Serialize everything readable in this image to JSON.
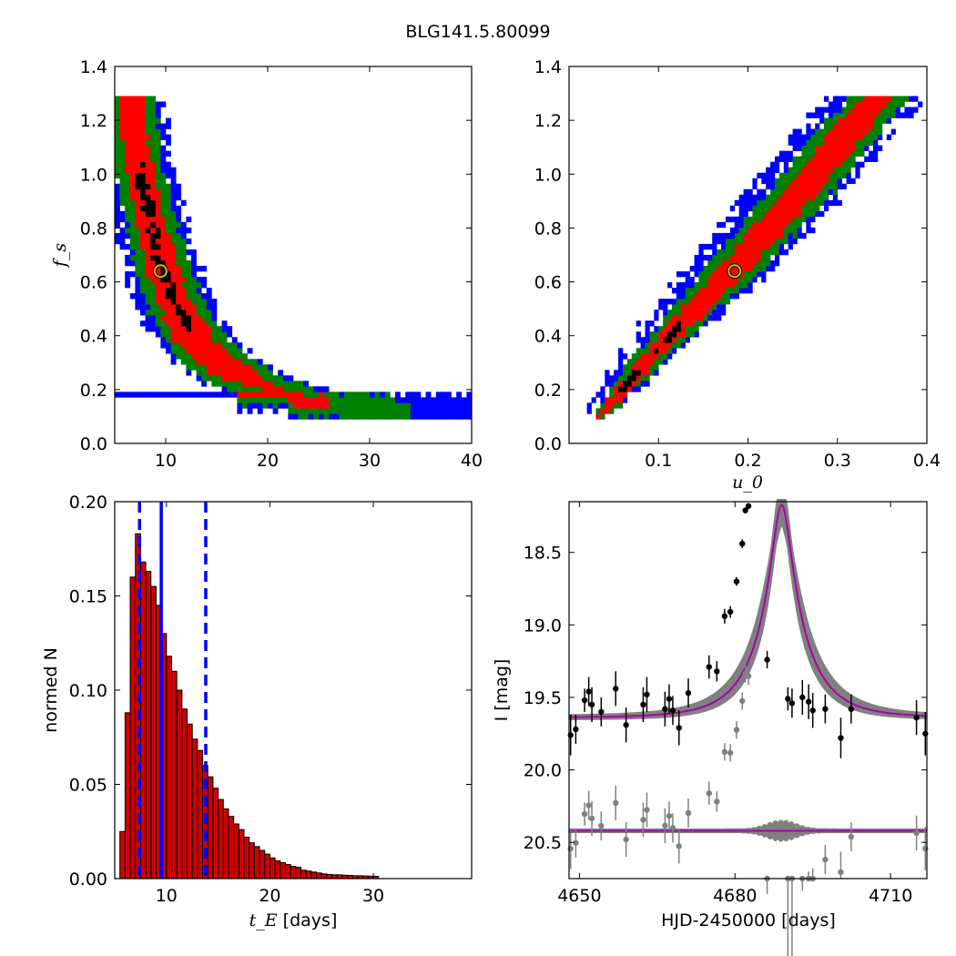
{
  "figure": {
    "title": "BLG141.5.80099"
  },
  "colors": {
    "sigma1": "#ff0000",
    "sigma2": "#008000",
    "sigma3": "#0000ff",
    "best_high": "#000000",
    "best_fit_marker": "#c8c800",
    "hist_bar": "#cc0000",
    "hist_line": "#0000ff",
    "model": "#aa00aa",
    "model_band": "#808080",
    "residuals": "#808080",
    "data": "#000000"
  },
  "chart_data": [
    {
      "type": "heatmap",
      "id": "tE_fs",
      "xlabel": "",
      "ylabel": "f_s",
      "xlim": [
        5,
        40
      ],
      "ylim": [
        0.0,
        1.4
      ],
      "xticks": [
        "10",
        "20",
        "30",
        "40"
      ],
      "yticks": [
        "0.0",
        "0.2",
        "0.4",
        "0.6",
        "0.8",
        "1.0",
        "1.2",
        "1.4"
      ],
      "best_fit": {
        "tE": 9.5,
        "fs": 0.64
      },
      "confidence_ridge": [
        {
          "tE": 6.5,
          "fs": 1.28,
          "w1": 1.2,
          "w2": 2.3,
          "w3": 3.2
        },
        {
          "tE": 7.5,
          "fs": 1.0,
          "w1": 1.3,
          "w2": 2.4,
          "w3": 3.4
        },
        {
          "tE": 9.0,
          "fs": 0.75,
          "w1": 1.5,
          "w2": 2.6,
          "w3": 3.6
        },
        {
          "tE": 10.5,
          "fs": 0.55,
          "w1": 1.6,
          "w2": 2.9,
          "w3": 3.9
        },
        {
          "tE": 13.0,
          "fs": 0.38,
          "w1": 2.0,
          "w2": 3.2,
          "w3": 4.2
        },
        {
          "tE": 17.0,
          "fs": 0.25,
          "w1": 2.5,
          "w2": 3.8,
          "w3": 4.8
        },
        {
          "tE": 22.0,
          "fs": 0.18,
          "w1": 0.0,
          "w2": 4.5,
          "w3": 5.5
        },
        {
          "tE": 27.0,
          "fs": 0.14,
          "w1": 0.0,
          "w2": 4.5,
          "w3": 5.5
        },
        {
          "tE": 32.0,
          "fs": 0.1,
          "w1": 0.0,
          "w2": 3.0,
          "w3": 4.0
        },
        {
          "tE": 40.0,
          "fs": 0.1,
          "w1": 0.0,
          "w2": 0.0,
          "w3": 3.0
        }
      ]
    },
    {
      "type": "heatmap",
      "id": "u0_fs",
      "xlabel": "u_0",
      "ylabel": "",
      "xlim": [
        0.0,
        0.4
      ],
      "ylim": [
        0.0,
        1.4
      ],
      "xticks": [
        "0.1",
        "0.2",
        "0.3",
        "0.4"
      ],
      "yticks": [
        "0.0",
        "0.2",
        "0.4",
        "0.6",
        "0.8",
        "1.0",
        "1.2",
        "1.4"
      ],
      "best_fit": {
        "u0": 0.185,
        "fs": 0.64
      },
      "confidence_ridge": [
        {
          "u0": 0.035,
          "fs": 0.1,
          "w1": 0.004,
          "w2": 0.007,
          "w3": 0.009
        },
        {
          "u0": 0.08,
          "fs": 0.28,
          "w1": 0.01,
          "w2": 0.017,
          "w3": 0.024
        },
        {
          "u0": 0.13,
          "fs": 0.46,
          "w1": 0.014,
          "w2": 0.024,
          "w3": 0.034
        },
        {
          "u0": 0.185,
          "fs": 0.65,
          "w1": 0.018,
          "w2": 0.032,
          "w3": 0.045
        },
        {
          "u0": 0.245,
          "fs": 0.88,
          "w1": 0.02,
          "w2": 0.036,
          "w3": 0.05
        },
        {
          "u0": 0.31,
          "fs": 1.15,
          "w1": 0.02,
          "w2": 0.036,
          "w3": 0.05
        },
        {
          "u0": 0.345,
          "fs": 1.28,
          "w1": 0.016,
          "w2": 0.032,
          "w3": 0.05
        }
      ]
    },
    {
      "type": "bar",
      "id": "tE_hist",
      "xlabel": "t_E",
      "xlabel_suffix": "[days]",
      "ylabel": "normed N",
      "xlim": [
        5,
        39.5
      ],
      "ylim": [
        0.0,
        0.2
      ],
      "xticks": [
        "10",
        "20",
        "30"
      ],
      "yticks": [
        "0.00",
        "0.05",
        "0.10",
        "0.15",
        "0.20"
      ],
      "bin_start": 5.5,
      "bin_width": 0.5,
      "values": [
        0.025,
        0.088,
        0.16,
        0.183,
        0.168,
        0.163,
        0.155,
        0.145,
        0.13,
        0.118,
        0.11,
        0.1,
        0.09,
        0.082,
        0.074,
        0.068,
        0.06,
        0.054,
        0.048,
        0.042,
        0.037,
        0.033,
        0.029,
        0.026,
        0.022,
        0.019,
        0.017,
        0.015,
        0.013,
        0.011,
        0.0095,
        0.0085,
        0.0075,
        0.0065,
        0.006,
        0.0045,
        0.004,
        0.0035,
        0.003,
        0.0025,
        0.0022,
        0.002,
        0.002,
        0.0018,
        0.0017,
        0.0015,
        0.0015,
        0.0014,
        0.0013,
        0.0012
      ],
      "vlines": {
        "median": 9.5,
        "lower": 7.4,
        "upper": 13.8
      }
    },
    {
      "type": "scatter",
      "id": "lightcurve",
      "xlabel": "HJD-2450000 [days]",
      "ylabel": "I [mag]",
      "xlim": [
        4648,
        4717
      ],
      "ylim": [
        20.75,
        18.15
      ],
      "y_inverted": true,
      "xticks": [
        "4650",
        "4680",
        "4710"
      ],
      "yticks": [
        "18.5",
        "19.0",
        "19.5",
        "20.0",
        "20.5"
      ],
      "model": {
        "t0": 4689,
        "u0": 0.185,
        "tE": 9.5,
        "fs": 0.64,
        "I_base": 19.64,
        "I_resid_base": 20.42
      },
      "points": [
        {
          "t": 4648.3,
          "I": 19.76,
          "e": 0.14
        },
        {
          "t": 4649.3,
          "I": 19.72,
          "e": 0.1
        },
        {
          "t": 4651.0,
          "I": 19.52,
          "e": 0.08
        },
        {
          "t": 4651.8,
          "I": 19.46,
          "e": 0.1
        },
        {
          "t": 4652.4,
          "I": 19.55,
          "e": 0.12
        },
        {
          "t": 4654.2,
          "I": 19.6,
          "e": 0.1
        },
        {
          "t": 4657.0,
          "I": 19.44,
          "e": 0.12
        },
        {
          "t": 4659.0,
          "I": 19.69,
          "e": 0.12
        },
        {
          "t": 4662.3,
          "I": 19.55,
          "e": 0.12
        },
        {
          "t": 4663.0,
          "I": 19.48,
          "e": 0.12
        },
        {
          "t": 4666.5,
          "I": 19.58,
          "e": 0.12
        },
        {
          "t": 4667.3,
          "I": 19.51,
          "e": 0.1
        },
        {
          "t": 4668.0,
          "I": 19.59,
          "e": 0.1
        },
        {
          "t": 4669.2,
          "I": 19.71,
          "e": 0.12
        },
        {
          "t": 4671.0,
          "I": 19.47,
          "e": 0.1
        },
        {
          "t": 4675.0,
          "I": 19.29,
          "e": 0.08
        },
        {
          "t": 4676.5,
          "I": 19.32,
          "e": 0.07
        },
        {
          "t": 4678.0,
          "I": 18.94,
          "e": 0.05
        },
        {
          "t": 4679.1,
          "I": 18.91,
          "e": 0.04
        },
        {
          "t": 4680.3,
          "I": 18.7,
          "e": 0.03
        },
        {
          "t": 4681.4,
          "I": 18.44,
          "e": 0.03
        },
        {
          "t": 4682.0,
          "I": 18.21,
          "e": 0.02
        },
        {
          "t": 4682.6,
          "I": 18.18,
          "e": 0.02
        },
        {
          "t": 4686.2,
          "I": 19.24,
          "e": 0.06
        },
        {
          "t": 4690.2,
          "I": 19.51,
          "e": 0.08
        },
        {
          "t": 4691.0,
          "I": 19.54,
          "e": 0.1
        },
        {
          "t": 4693.0,
          "I": 19.5,
          "e": 0.12
        },
        {
          "t": 4694.2,
          "I": 19.53,
          "e": 0.12
        },
        {
          "t": 4695.0,
          "I": 19.59,
          "e": 0.12
        },
        {
          "t": 4697.4,
          "I": 19.58,
          "e": 0.1
        },
        {
          "t": 4700.4,
          "I": 19.78,
          "e": 0.14
        },
        {
          "t": 4702.4,
          "I": 19.58,
          "e": 0.1
        },
        {
          "t": 4715.0,
          "I": 19.64,
          "e": 0.12
        },
        {
          "t": 4716.7,
          "I": 19.75,
          "e": 0.15
        }
      ]
    }
  ]
}
